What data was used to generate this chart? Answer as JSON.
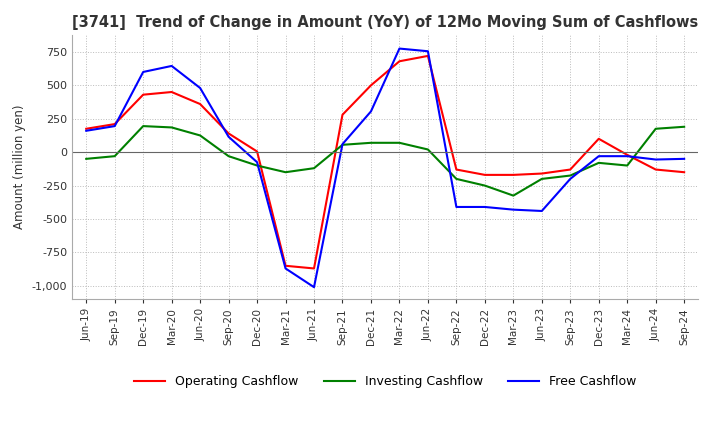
{
  "title": "[3741]  Trend of Change in Amount (YoY) of 12Mo Moving Sum of Cashflows",
  "ylabel": "Amount (million yen)",
  "ylim": [
    -1100,
    875
  ],
  "yticks": [
    750,
    500,
    250,
    0,
    -250,
    -500,
    -750,
    -1000
  ],
  "x_labels": [
    "Jun-19",
    "Sep-19",
    "Dec-19",
    "Mar-20",
    "Jun-20",
    "Sep-20",
    "Dec-20",
    "Mar-21",
    "Jun-21",
    "Sep-21",
    "Dec-21",
    "Mar-22",
    "Jun-22",
    "Sep-22",
    "Dec-22",
    "Mar-23",
    "Jun-23",
    "Sep-23",
    "Dec-23",
    "Mar-24",
    "Jun-24",
    "Sep-24"
  ],
  "operating": [
    175,
    210,
    430,
    450,
    360,
    140,
    5,
    -850,
    -870,
    280,
    500,
    680,
    720,
    -130,
    -170,
    -170,
    -160,
    -130,
    100,
    -20,
    -130,
    -150
  ],
  "investing": [
    -50,
    -30,
    195,
    185,
    125,
    -30,
    -100,
    -150,
    -120,
    55,
    70,
    70,
    20,
    -200,
    -250,
    -325,
    -200,
    -175,
    -80,
    -100,
    175,
    190
  ],
  "free": [
    160,
    195,
    600,
    645,
    480,
    115,
    -75,
    -870,
    -1010,
    60,
    305,
    775,
    755,
    -410,
    -410,
    -430,
    -440,
    -200,
    -30,
    -30,
    -55,
    -50
  ],
  "operating_color": "#ff0000",
  "investing_color": "#008000",
  "free_color": "#0000ff",
  "background_color": "#ffffff",
  "grid_color": "#bbbbbb"
}
